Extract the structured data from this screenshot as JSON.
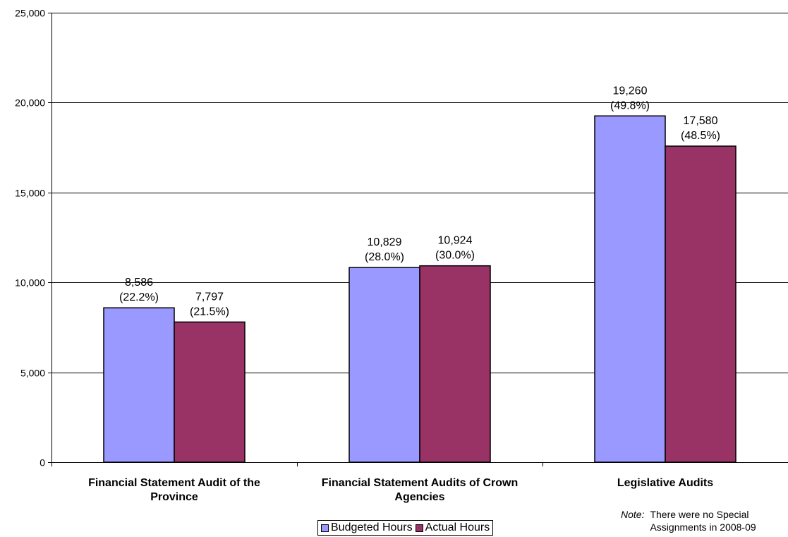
{
  "chart_data": {
    "type": "bar",
    "categories": [
      [
        "Financial Statement Audit of the",
        "Province"
      ],
      [
        "Financial Statement Audits of Crown",
        "Agencies"
      ],
      [
        "Legislative Audits"
      ]
    ],
    "series": [
      {
        "name": "Budgeted Hours",
        "color": "#9999ff",
        "values": [
          8586,
          10829,
          19260
        ],
        "labels": [
          [
            "8,586",
            "(22.2%)"
          ],
          [
            "10,829",
            "(28.0%)"
          ],
          [
            "19,260",
            "(49.8%)"
          ]
        ]
      },
      {
        "name": "Actual Hours",
        "color": "#993366",
        "values": [
          7797,
          10924,
          17580
        ],
        "labels": [
          [
            "7,797",
            "(21.5%)"
          ],
          [
            "10,924",
            "(30.0%)"
          ],
          [
            "17,580",
            "(48.5%)"
          ]
        ]
      }
    ],
    "ylim": [
      0,
      25000
    ],
    "yticks": [
      0,
      5000,
      10000,
      15000,
      20000,
      25000
    ],
    "ytick_labels": [
      "0",
      "5,000",
      "10,000",
      "15,000",
      "20,000",
      "25,000"
    ],
    "grid": true,
    "legend_position": "bottom"
  },
  "note": {
    "label": "Note:",
    "lines": [
      "There were no Special",
      "Assignments in 2008-09"
    ]
  }
}
